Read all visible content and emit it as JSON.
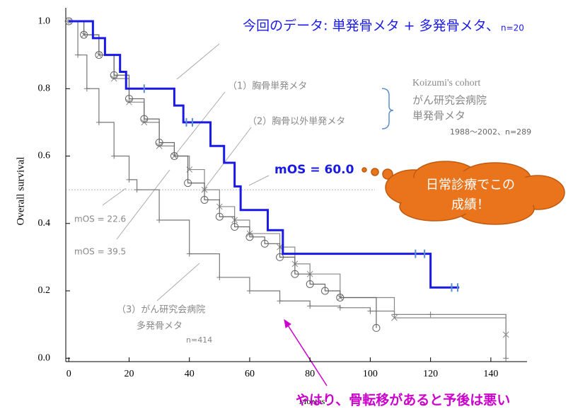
{
  "chart_data": {
    "type": "line",
    "step": true,
    "xlabel": "Months",
    "ylabel": "Overall survival",
    "xlim": [
      -1,
      152
    ],
    "xticks": [
      0,
      20,
      40,
      60,
      80,
      100,
      120,
      140
    ],
    "ylim": [
      -0.01,
      1.04
    ],
    "yticks": [
      {
        "value": 0,
        "label": "0.0"
      },
      0.2,
      0.4,
      0.6,
      0.8,
      {
        "value": 1,
        "label": "1.0"
      }
    ],
    "hline": 0.5,
    "series": [
      {
        "name": "今回のデータ: 単発骨メタ + 多発骨メタ、",
        "color": "#1a1ae6",
        "marker": "censor",
        "x": [
          0,
          8,
          12,
          17,
          19,
          35,
          38,
          47,
          51.5,
          55,
          57,
          66,
          71,
          120,
          129.5
        ],
        "values": [
          1,
          0.95,
          0.9,
          0.85,
          0.8,
          0.75,
          0.7,
          0.63,
          0.58,
          0.51,
          0.44,
          0.38,
          0.31,
          0.21,
          0.21
        ],
        "censored": [
          25,
          39,
          41,
          115,
          118,
          127,
          129
        ]
      },
      {
        "name": "（1）胸骨単発メタ",
        "color": "#666666",
        "marker": "circle",
        "x": [
          0,
          5,
          10,
          15,
          20,
          25,
          30,
          35,
          39.5,
          45,
          50,
          55,
          60,
          65,
          70,
          75,
          80,
          85,
          90,
          102
        ],
        "values": [
          1,
          0.96,
          0.9,
          0.84,
          0.77,
          0.71,
          0.64,
          0.6,
          0.52,
          0.47,
          0.42,
          0.39,
          0.36,
          0.34,
          0.3,
          0.25,
          0.22,
          0.2,
          0.18,
          0.09
        ]
      },
      {
        "name": "（2）胸骨以外単発メタ",
        "color": "#888888",
        "marker": "cross",
        "x": [
          0,
          5,
          10,
          15,
          20,
          25,
          30,
          35,
          40,
          45,
          50,
          55,
          60,
          70,
          75,
          80,
          90,
          108,
          145
        ],
        "values": [
          1,
          0.96,
          0.9,
          0.83,
          0.76,
          0.7,
          0.63,
          0.6,
          0.56,
          0.5,
          0.45,
          0.41,
          0.37,
          0.33,
          0.28,
          0.25,
          0.18,
          0.12,
          0.07
        ]
      },
      {
        "name": "（3）がん研究会病院",
        "color": "#777777",
        "marker": "plus",
        "x": [
          0,
          3,
          6,
          10,
          15,
          20,
          22.6,
          30,
          40,
          50,
          60,
          70,
          80,
          90,
          100,
          108,
          120,
          145
        ],
        "values": [
          1,
          0.9,
          0.8,
          0.7,
          0.6,
          0.53,
          0.5,
          0.41,
          0.31,
          0.24,
          0.2,
          0.17,
          0.155,
          0.15,
          0.14,
          0.13,
          0.13,
          0
        ]
      }
    ],
    "annotations": [
      "n=20",
      "Koizumi's cohort",
      "がん研究会病院",
      "単発骨メタ",
      "1988〜2002、n=289",
      "mOS = 60.0",
      "日常診療でこの",
      "成績！",
      "mOS = 22.6",
      "mOS = 39.5",
      "多発骨メタ",
      "n=414",
      "やはり、骨転移があると予後は悪い"
    ]
  }
}
